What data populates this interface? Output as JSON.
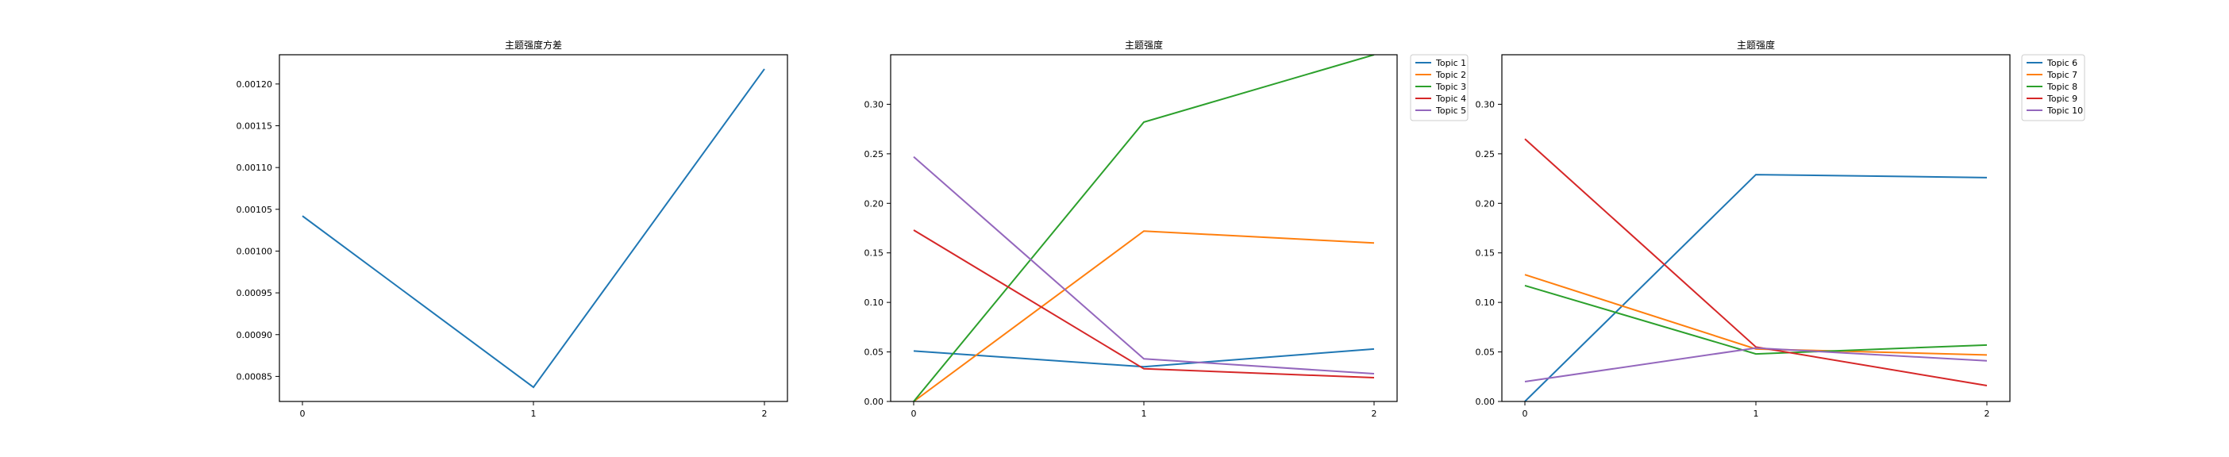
{
  "chart_data": [
    {
      "type": "line",
      "title": "主题强度方差",
      "xlabel": "",
      "ylabel": "",
      "x": [
        0,
        1,
        2
      ],
      "xticks": [
        "0",
        "1",
        "2"
      ],
      "ylim": [
        0.00082,
        0.001235
      ],
      "yticks": [
        "0.00085",
        "0.00090",
        "0.00095",
        "0.00100",
        "0.00105",
        "0.00110",
        "0.00115",
        "0.00120"
      ],
      "grid": false,
      "legend": "none",
      "series": [
        {
          "values": [
            0.001042,
            0.000837,
            0.001218
          ],
          "color": "#1f77b4"
        }
      ]
    },
    {
      "type": "line",
      "title": "主题强度",
      "xlabel": "",
      "ylabel": "",
      "x": [
        0,
        1,
        2
      ],
      "xticks": [
        "0",
        "1",
        "2"
      ],
      "ylim": [
        0,
        0.35
      ],
      "yticks": [
        "0.00",
        "0.05",
        "0.10",
        "0.15",
        "0.20",
        "0.25",
        "0.30"
      ],
      "grid": false,
      "legend": "outside-right",
      "series": [
        {
          "name": "Topic 1",
          "values": [
            0.051,
            0.035,
            0.053
          ],
          "color": "#1f77b4"
        },
        {
          "name": "Topic 2",
          "values": [
            0.0,
            0.172,
            0.16
          ],
          "color": "#ff7f0e"
        },
        {
          "name": "Topic 3",
          "values": [
            0.0,
            0.282,
            0.35
          ],
          "color": "#2ca02c"
        },
        {
          "name": "Topic 4",
          "values": [
            0.173,
            0.033,
            0.024
          ],
          "color": "#d62728"
        },
        {
          "name": "Topic 5",
          "values": [
            0.247,
            0.043,
            0.028
          ],
          "color": "#9467bd"
        }
      ]
    },
    {
      "type": "line",
      "title": "主题强度",
      "xlabel": "",
      "ylabel": "",
      "x": [
        0,
        1,
        2
      ],
      "xticks": [
        "0",
        "1",
        "2"
      ],
      "ylim": [
        0,
        0.35
      ],
      "yticks": [
        "0.00",
        "0.05",
        "0.10",
        "0.15",
        "0.20",
        "0.25",
        "0.30"
      ],
      "grid": false,
      "legend": "outside-right",
      "series": [
        {
          "name": "Topic 6",
          "values": [
            0.0,
            0.229,
            0.226
          ],
          "color": "#1f77b4"
        },
        {
          "name": "Topic 7",
          "values": [
            0.128,
            0.053,
            0.047
          ],
          "color": "#ff7f0e"
        },
        {
          "name": "Topic 8",
          "values": [
            0.117,
            0.048,
            0.057
          ],
          "color": "#2ca02c"
        },
        {
          "name": "Topic 9",
          "values": [
            0.265,
            0.055,
            0.016
          ],
          "color": "#d62728"
        },
        {
          "name": "Topic 10",
          "values": [
            0.02,
            0.054,
            0.041
          ],
          "color": "#9467bd"
        }
      ]
    }
  ]
}
